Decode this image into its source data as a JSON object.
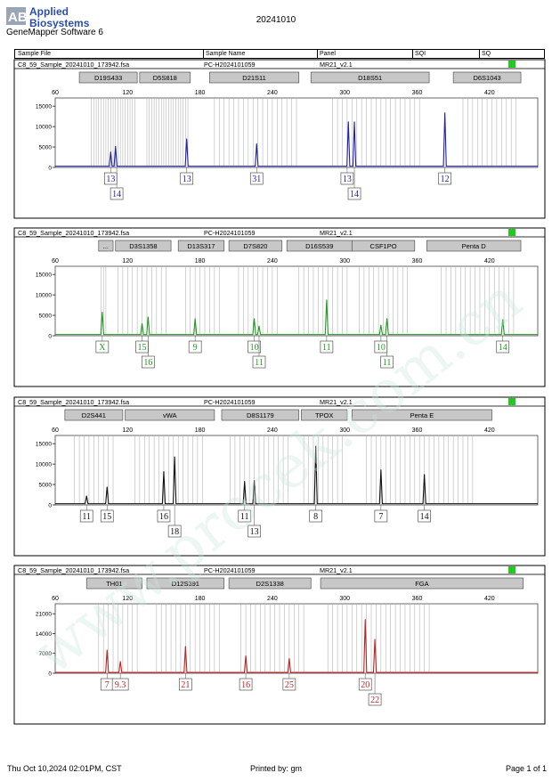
{
  "header": {
    "brand_logo": "AB",
    "brand_line1": "Applied",
    "brand_line2": "Biosystems",
    "software": "GeneMapper Software 6",
    "date": "20241010"
  },
  "columns": [
    "Sample File",
    "Sample Name",
    "Panel",
    "SQI",
    "SQ"
  ],
  "footer": {
    "printed_at": "Thu Oct 10,2024 02:01PM, CST",
    "printed_by": "Printed by: gm",
    "page": "Page 1 of 1"
  },
  "watermark": "www.procek.com.cn",
  "chart_data": [
    {
      "type": "line",
      "sample_file": "C8_59_Sample_20241010_173942.fsa",
      "sample_name": "PC-H2024101059",
      "panel": "MR21_v2.1",
      "status_color": "#22c922",
      "color": "#1f1fa6",
      "xlim": [
        60,
        460
      ],
      "x_ticks": [
        60,
        120,
        180,
        240,
        300,
        360,
        420
      ],
      "ylim": [
        0,
        17000
      ],
      "y_ticks": [
        0,
        5000,
        10000,
        15000
      ],
      "markers": [
        {
          "label": "D19S433",
          "start": 80,
          "end": 128
        },
        {
          "label": "D5S818",
          "start": 130,
          "end": 172
        },
        {
          "label": "D21S11",
          "start": 188,
          "end": 262
        },
        {
          "label": "D18S51",
          "start": 272,
          "end": 370
        },
        {
          "label": "D6S1043",
          "start": 390,
          "end": 446
        }
      ],
      "bins": [
        90,
        92,
        94,
        96,
        98,
        100,
        102,
        104,
        106,
        108,
        110,
        112,
        114,
        116,
        118,
        120,
        122,
        124,
        126,
        136,
        138,
        140,
        142,
        144,
        146,
        148,
        150,
        152,
        154,
        156,
        158,
        160,
        162,
        164,
        166,
        168,
        170,
        192,
        196,
        200,
        204,
        208,
        212,
        216,
        220,
        224,
        228,
        232,
        236,
        240,
        244,
        248,
        252,
        256,
        260,
        290,
        294,
        298,
        302,
        306,
        310,
        314,
        318,
        322,
        326,
        330,
        334,
        338,
        342,
        346,
        350,
        354,
        358,
        362,
        398,
        402,
        406,
        410,
        414,
        418,
        422,
        426,
        430,
        434,
        438,
        442
      ],
      "peaks": [
        {
          "x": 106,
          "y": 3800
        },
        {
          "x": 110,
          "y": 5200
        },
        {
          "x": 169,
          "y": 7000
        },
        {
          "x": 227,
          "y": 5800
        },
        {
          "x": 303,
          "y": 11200
        },
        {
          "x": 308,
          "y": 11200
        },
        {
          "x": 383,
          "y": 13400
        }
      ],
      "alleles": [
        {
          "label": "13",
          "x": 106,
          "row": 0
        },
        {
          "label": "14",
          "x": 111,
          "row": 1
        },
        {
          "label": "13",
          "x": 169,
          "row": 0
        },
        {
          "label": "31",
          "x": 227,
          "row": 0
        },
        {
          "label": "13",
          "x": 302,
          "row": 0
        },
        {
          "label": "14",
          "x": 308,
          "row": 1
        },
        {
          "label": "12",
          "x": 383,
          "row": 0
        }
      ]
    },
    {
      "type": "line",
      "sample_file": "C8_59_Sample_20241010_173942.fsa",
      "sample_name": "PC-H2024101059",
      "panel": "MR21_v2.1",
      "status_color": "#22c922",
      "color": "#1f9a1f",
      "xlim": [
        60,
        460
      ],
      "x_ticks": [
        60,
        120,
        180,
        240,
        300,
        360,
        420
      ],
      "ylim": [
        0,
        17000
      ],
      "y_ticks": [
        0,
        5000,
        10000,
        15000
      ],
      "markers": [
        {
          "label": "...",
          "start": 96,
          "end": 108
        },
        {
          "label": "D3S1358",
          "start": 110,
          "end": 156
        },
        {
          "label": "D13S317",
          "start": 162,
          "end": 200
        },
        {
          "label": "D7S820",
          "start": 204,
          "end": 248
        },
        {
          "label": "D16S539",
          "start": 252,
          "end": 306
        },
        {
          "label": "CSF1PO",
          "start": 306,
          "end": 358
        },
        {
          "label": "Penta D",
          "start": 368,
          "end": 446
        }
      ],
      "bins": [
        98,
        100,
        102,
        112,
        116,
        120,
        124,
        128,
        132,
        136,
        140,
        144,
        148,
        152,
        168,
        172,
        176,
        180,
        184,
        188,
        192,
        196,
        212,
        216,
        220,
        224,
        228,
        232,
        236,
        240,
        244,
        262,
        266,
        270,
        274,
        278,
        282,
        286,
        290,
        294,
        298,
        302,
        312,
        316,
        320,
        324,
        328,
        332,
        336,
        340,
        344,
        348,
        352,
        380,
        384,
        388,
        392,
        396,
        400,
        404,
        408,
        412,
        416,
        420,
        424,
        428,
        432,
        436,
        440
      ],
      "peaks": [
        {
          "x": 99,
          "y": 5800
        },
        {
          "x": 132,
          "y": 3000
        },
        {
          "x": 137,
          "y": 4600
        },
        {
          "x": 176,
          "y": 4200
        },
        {
          "x": 225,
          "y": 4200
        },
        {
          "x": 229,
          "y": 2400
        },
        {
          "x": 285,
          "y": 8800
        },
        {
          "x": 330,
          "y": 2600
        },
        {
          "x": 335,
          "y": 4200
        },
        {
          "x": 431,
          "y": 4000
        }
      ],
      "alleles": [
        {
          "label": "X",
          "x": 99,
          "row": 0
        },
        {
          "label": "15",
          "x": 132,
          "row": 0
        },
        {
          "label": "16",
          "x": 137,
          "row": 1
        },
        {
          "label": "9",
          "x": 176,
          "row": 0
        },
        {
          "label": "10",
          "x": 225,
          "row": 0
        },
        {
          "label": "11",
          "x": 229,
          "row": 1
        },
        {
          "label": "11",
          "x": 285,
          "row": 0
        },
        {
          "label": "10",
          "x": 330,
          "row": 0
        },
        {
          "label": "11",
          "x": 335,
          "row": 1
        },
        {
          "label": "14",
          "x": 431,
          "row": 0
        }
      ]
    },
    {
      "type": "line",
      "sample_file": "C8_59_Sample_20241010_173942.fsa",
      "sample_name": "PC-H2024101059",
      "panel": "MR21_v2.1",
      "status_color": "#22c922",
      "color": "#111111",
      "xlim": [
        60,
        460
      ],
      "x_ticks": [
        60,
        120,
        180,
        240,
        300,
        360,
        420
      ],
      "ylim": [
        0,
        17000
      ],
      "y_ticks": [
        0,
        5000,
        10000,
        15000
      ],
      "markers": [
        {
          "label": "D2S441",
          "start": 68,
          "end": 116
        },
        {
          "label": "vWA",
          "start": 118,
          "end": 192
        },
        {
          "label": "D8S1179",
          "start": 198,
          "end": 262
        },
        {
          "label": "TPOX",
          "start": 264,
          "end": 302
        },
        {
          "label": "Penta E",
          "start": 306,
          "end": 422
        }
      ],
      "bins": [
        76,
        80,
        84,
        88,
        92,
        96,
        100,
        104,
        108,
        126,
        130,
        134,
        138,
        142,
        146,
        150,
        154,
        158,
        162,
        166,
        170,
        174,
        178,
        182,
        205,
        209,
        213,
        217,
        221,
        225,
        229,
        233,
        237,
        241,
        245,
        249,
        253,
        266,
        270,
        274,
        278,
        282,
        286,
        290,
        294,
        298,
        318,
        322,
        326,
        330,
        334,
        338,
        342,
        346,
        350,
        354,
        358,
        362,
        366,
        370,
        374,
        378,
        382,
        386,
        390,
        394,
        398,
        402,
        406
      ],
      "peaks": [
        {
          "x": 86,
          "y": 2200
        },
        {
          "x": 103,
          "y": 4400
        },
        {
          "x": 150,
          "y": 8200
        },
        {
          "x": 159,
          "y": 11800
        },
        {
          "x": 217,
          "y": 5800
        },
        {
          "x": 225,
          "y": 6000
        },
        {
          "x": 276,
          "y": 14400
        },
        {
          "x": 330,
          "y": 8600
        },
        {
          "x": 366,
          "y": 7500
        }
      ],
      "alleles": [
        {
          "label": "11",
          "x": 86,
          "row": 0
        },
        {
          "label": "15",
          "x": 103,
          "row": 0
        },
        {
          "label": "16",
          "x": 150,
          "row": 0
        },
        {
          "label": "18",
          "x": 159,
          "row": 1
        },
        {
          "label": "11",
          "x": 217,
          "row": 0
        },
        {
          "label": "13",
          "x": 225,
          "row": 1
        },
        {
          "label": "8",
          "x": 276,
          "row": 0
        },
        {
          "label": "7",
          "x": 330,
          "row": 0
        },
        {
          "label": "14",
          "x": 366,
          "row": 0
        }
      ]
    },
    {
      "type": "line",
      "sample_file": "C8_59_Sample_20241010_173942.fsa",
      "sample_name": "PC-H2024101059",
      "panel": "MR21_v2.1",
      "status_color": "#22c922",
      "color": "#c42222",
      "xlim": [
        60,
        460
      ],
      "x_ticks": [
        60,
        120,
        180,
        240,
        300,
        360,
        420
      ],
      "ylim": [
        0,
        24500
      ],
      "y_ticks": [
        0,
        7000,
        14000,
        21000
      ],
      "markers": [
        {
          "label": "TH01",
          "start": 86,
          "end": 132
        },
        {
          "label": "D12S391",
          "start": 136,
          "end": 200
        },
        {
          "label": "D2S1338",
          "start": 204,
          "end": 272
        },
        {
          "label": "FGA",
          "start": 280,
          "end": 448
        }
      ],
      "bins": [
        96,
        100,
        104,
        108,
        112,
        116,
        120,
        124,
        128,
        144,
        148,
        152,
        156,
        160,
        164,
        168,
        172,
        176,
        180,
        184,
        188,
        192,
        196,
        214,
        218,
        222,
        226,
        230,
        234,
        238,
        242,
        246,
        250,
        254,
        258,
        262,
        266,
        286,
        290,
        294,
        298,
        302,
        306,
        310,
        314,
        318,
        322,
        326,
        330,
        334,
        338,
        342,
        346,
        350,
        354,
        358,
        362,
        366,
        370
      ],
      "peaks": [
        {
          "x": 103,
          "y": 8200
        },
        {
          "x": 114,
          "y": 4200
        },
        {
          "x": 168,
          "y": 9500
        },
        {
          "x": 218,
          "y": 6200
        },
        {
          "x": 254,
          "y": 5200
        },
        {
          "x": 317,
          "y": 19000
        },
        {
          "x": 325,
          "y": 12000
        }
      ],
      "alleles": [
        {
          "label": "7",
          "x": 103,
          "row": 0
        },
        {
          "label": "9.3",
          "x": 114,
          "row": 0
        },
        {
          "label": "21",
          "x": 168,
          "row": 0
        },
        {
          "label": "16",
          "x": 218,
          "row": 0
        },
        {
          "label": "25",
          "x": 254,
          "row": 0
        },
        {
          "label": "20",
          "x": 317,
          "row": 0
        },
        {
          "label": "22",
          "x": 325,
          "row": 1
        }
      ]
    }
  ]
}
